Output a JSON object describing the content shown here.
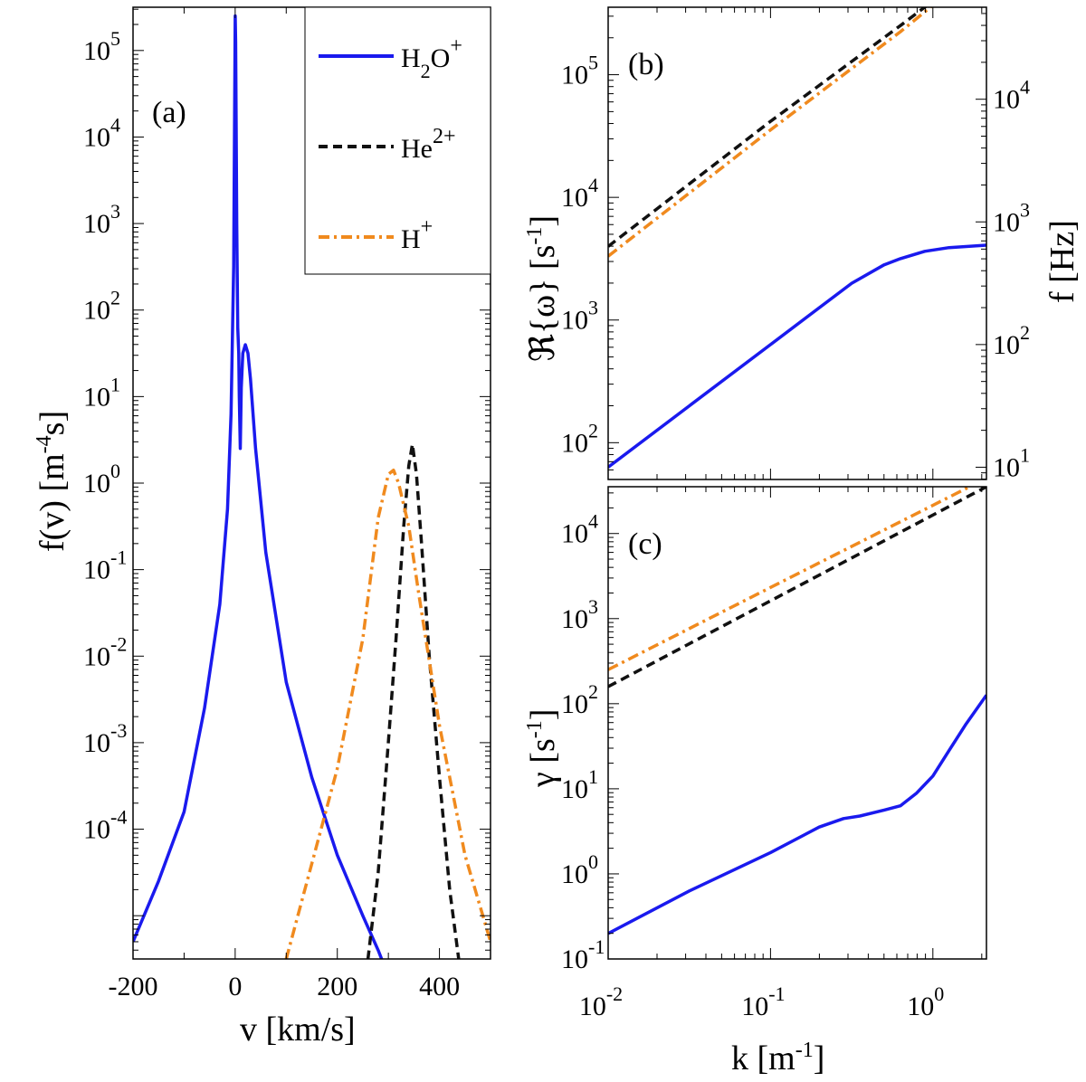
{
  "colors": {
    "h2o": "#1a1aee",
    "he": "#111111",
    "h": "#f08a1e"
  },
  "legend": [
    {
      "series": "h2o",
      "base": "H",
      "sub": "2",
      "mid": "O",
      "sup": "+"
    },
    {
      "series": "he",
      "base": "He",
      "sub": "",
      "mid": "",
      "sup": "2+"
    },
    {
      "series": "h",
      "base": "H",
      "sub": "",
      "mid": "",
      "sup": "+"
    }
  ],
  "chart_data": [
    {
      "panel": "(a)",
      "type": "line",
      "xscale": "linear",
      "yscale": "log",
      "xlim": [
        -200,
        500
      ],
      "ylim_log10": [
        -5.5,
        5.5
      ],
      "xticks": [
        "-200",
        "0",
        "200",
        "400"
      ],
      "yticks": [
        {
          "b": "10",
          "e": "5"
        },
        {
          "b": "10",
          "e": "4"
        },
        {
          "b": "10",
          "e": "3"
        },
        {
          "b": "10",
          "e": "2"
        },
        {
          "b": "10",
          "e": "1"
        },
        {
          "b": "10",
          "e": "0"
        },
        {
          "b": "10",
          "e": "-1"
        },
        {
          "b": "10",
          "e": "-2"
        },
        {
          "b": "10",
          "e": "-3"
        },
        {
          "b": "10",
          "e": "-4"
        }
      ],
      "xlabel": "v   [km/s]",
      "ylabel": {
        "pre": "f(v)   [m",
        "sup": "-4",
        "post": "s]"
      },
      "series": [
        {
          "id": "h2o",
          "style": "solid",
          "x": [
            -200,
            -150,
            -100,
            -60,
            -30,
            -15,
            -8,
            -3,
            0,
            1,
            3,
            5,
            7,
            8,
            10,
            12,
            15,
            20,
            25,
            30,
            40,
            60,
            100,
            150,
            200,
            250,
            280,
            300,
            320
          ],
          "log10y": [
            -5.3,
            -4.6,
            -3.8,
            -2.6,
            -1.4,
            -0.3,
            0.8,
            2.5,
            5.4,
            5.1,
            3.0,
            1.8,
            1.5,
            1.0,
            0.4,
            1.1,
            1.5,
            1.6,
            1.5,
            1.2,
            0.4,
            -0.8,
            -2.3,
            -3.4,
            -4.3,
            -5.0,
            -5.4,
            -5.7,
            -5.9
          ]
        },
        {
          "id": "he",
          "style": "dashed",
          "x": [
            245,
            260,
            280,
            300,
            315,
            330,
            340,
            347,
            355,
            365,
            380,
            400,
            420,
            440,
            455
          ],
          "log10y": [
            -6.0,
            -5.5,
            -4.5,
            -3.0,
            -1.8,
            -0.5,
            0.2,
            0.45,
            0.1,
            -0.7,
            -2.0,
            -3.4,
            -4.7,
            -5.6,
            -6.2
          ]
        },
        {
          "id": "h",
          "style": "dashdot",
          "x": [
            70,
            100,
            150,
            200,
            250,
            280,
            300,
            310,
            320,
            340,
            360,
            400,
            450,
            500
          ],
          "log10y": [
            -6.0,
            -5.5,
            -4.4,
            -3.3,
            -1.8,
            -0.4,
            0.1,
            0.15,
            0.0,
            -0.5,
            -1.3,
            -2.8,
            -4.3,
            -5.3
          ]
        }
      ]
    },
    {
      "panel": "(b)",
      "type": "line",
      "xscale": "log",
      "yscale": "log",
      "xlim_log10": [
        -2,
        0.33
      ],
      "ylim_log10": [
        1.7,
        5.55
      ],
      "ylim_right_log10": [
        0.9,
        4.75
      ],
      "yticks": [
        {
          "b": "10",
          "e": "5"
        },
        {
          "b": "10",
          "e": "4"
        },
        {
          "b": "10",
          "e": "3"
        },
        {
          "b": "10",
          "e": "2"
        }
      ],
      "yticks_right": [
        {
          "b": "10",
          "e": "4"
        },
        {
          "b": "10",
          "e": "3"
        },
        {
          "b": "10",
          "e": "2"
        },
        {
          "b": "10",
          "e": "1"
        }
      ],
      "ylabel": {
        "pre": "ℜ{ω}   [s",
        "sup": "-1",
        "post": "]"
      },
      "ylabel_right": "f   [Hz]",
      "series": [
        {
          "id": "he",
          "style": "dashed",
          "log10x": [
            -2,
            -1,
            -0.2,
            0.05
          ],
          "log10y": [
            3.6,
            4.62,
            5.4,
            5.65
          ]
        },
        {
          "id": "h",
          "style": "dashdot",
          "log10x": [
            -2,
            -1,
            -0.2,
            0.05
          ],
          "log10y": [
            3.52,
            4.55,
            5.35,
            5.62
          ]
        },
        {
          "id": "h2o",
          "style": "solid",
          "log10x": [
            -2,
            -1.5,
            -1,
            -0.75,
            -0.5,
            -0.3,
            -0.2,
            -0.05,
            0.1,
            0.33
          ],
          "log10y": [
            1.8,
            2.3,
            2.8,
            3.05,
            3.3,
            3.45,
            3.5,
            3.56,
            3.59,
            3.61
          ]
        }
      ]
    },
    {
      "panel": "(c)",
      "type": "line",
      "xscale": "log",
      "yscale": "log",
      "xlim_log10": [
        -2,
        0.33
      ],
      "ylim_log10": [
        -1,
        4.55
      ],
      "xticks": [
        {
          "b": "10",
          "e": "-2"
        },
        {
          "b": "10",
          "e": "-1"
        },
        {
          "b": "10",
          "e": "0"
        }
      ],
      "yticks": [
        {
          "b": "10",
          "e": "4"
        },
        {
          "b": "10",
          "e": "3"
        },
        {
          "b": "10",
          "e": "2"
        },
        {
          "b": "10",
          "e": "1"
        },
        {
          "b": "10",
          "e": "0"
        },
        {
          "b": "10",
          "e": "-1"
        }
      ],
      "xlabel": {
        "pre": "k   [m",
        "sup": "-1",
        "post": "]"
      },
      "ylabel": {
        "pre": "γ   [s",
        "sup": "-1",
        "post": "]"
      },
      "series": [
        {
          "id": "h",
          "style": "dashdot",
          "log10x": [
            -2,
            0.33
          ],
          "log10y": [
            2.4,
            4.65
          ]
        },
        {
          "id": "he",
          "style": "dashed",
          "log10x": [
            -2,
            0.33
          ],
          "log10y": [
            2.2,
            4.55
          ]
        },
        {
          "id": "h2o",
          "style": "solid",
          "log10x": [
            -2,
            -1.5,
            -1,
            -0.7,
            -0.55,
            -0.45,
            -0.3,
            -0.2,
            -0.1,
            0,
            0.1,
            0.2,
            0.33
          ],
          "log10y": [
            -0.7,
            -0.2,
            0.25,
            0.55,
            0.65,
            0.68,
            0.75,
            0.8,
            0.95,
            1.15,
            1.45,
            1.75,
            2.1
          ]
        }
      ]
    }
  ]
}
